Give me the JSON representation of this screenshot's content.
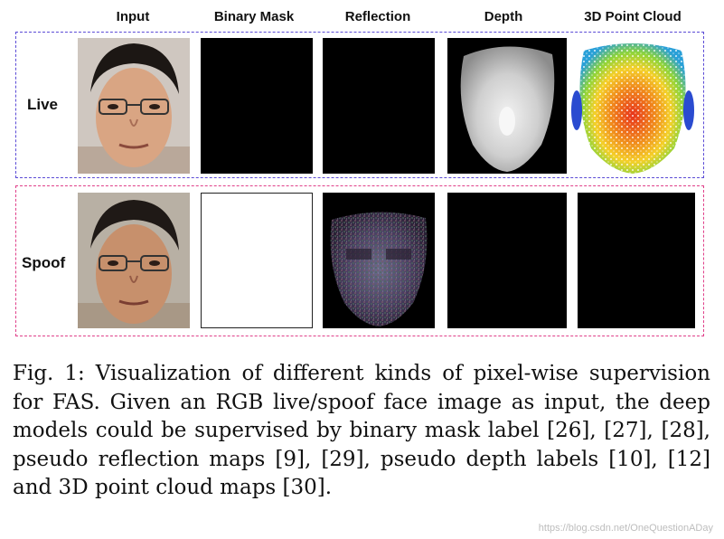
{
  "columns": [
    "Input",
    "Binary Mask",
    "Reflection",
    "Depth",
    "3D Point Cloud"
  ],
  "rows": {
    "live": "Live",
    "spoof": "Spoof"
  },
  "colors": {
    "live_border": "#5b4bd6",
    "spoof_border": "#e0408a"
  },
  "caption": "Fig. 1: Visualization of different kinds of pixel-wise supervision for FAS. Given an RGB live/spoof face image as input, the deep models could be supervised by binary mask label [26], [27], [28], pseudo reflection maps [9], [29], pseudo depth labels [10], [12] and 3D point cloud maps [30].",
  "watermark": "https://blog.csdn.net/OneQuestionADay"
}
